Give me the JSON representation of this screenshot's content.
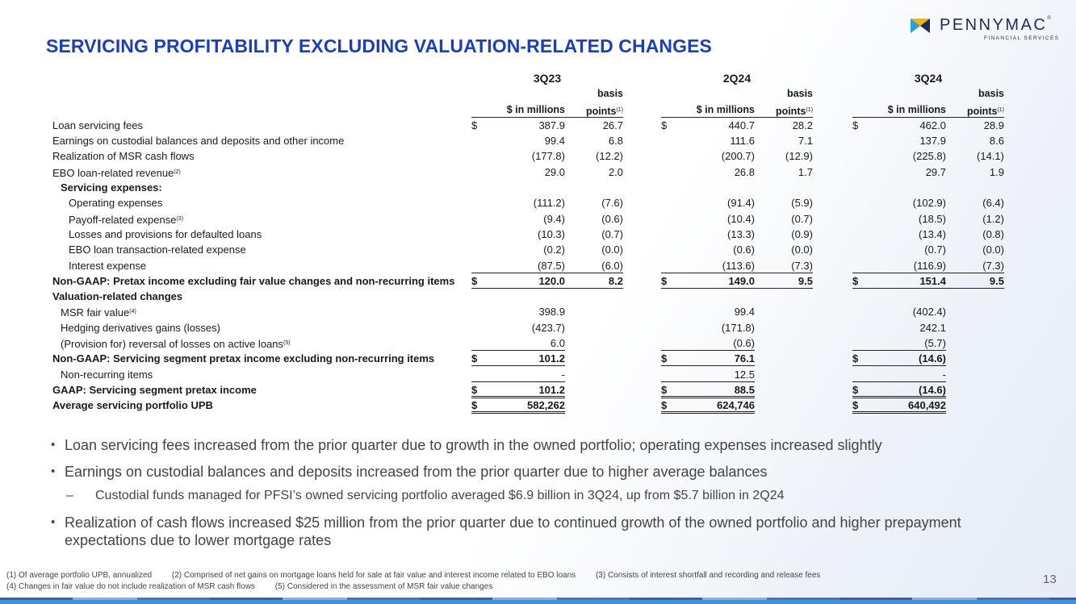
{
  "brand": {
    "name": "PENNYMAC",
    "reg": "®",
    "sub": "FINANCIAL SERVICES",
    "mark_colors": [
      "#f5b400",
      "#2e9fd8",
      "#1c2b5a"
    ]
  },
  "title": "SERVICING PROFITABILITY EXCLUDING VALUATION-RELATED CHANGES",
  "table": {
    "quarters": [
      "3Q23",
      "2Q24",
      "3Q24"
    ],
    "col_value_header": "$ in millions",
    "col_bps_header_top": "basis",
    "col_bps_header_bottom": "points",
    "col_bps_sup": "(1)",
    "dollar": "$",
    "rows": {
      "r01": {
        "label": "Loan servicing fees",
        "v1": "387.9",
        "b1": "26.7",
        "v2": "440.7",
        "b2": "28.2",
        "v3": "462.0",
        "b3": "28.9"
      },
      "r02": {
        "label": "Earnings on custodial balances and deposits and other income",
        "v1": "99.4",
        "b1": "6.8",
        "v2": "111.6",
        "b2": "7.1",
        "v3": "137.9",
        "b3": "8.6"
      },
      "r03": {
        "label": "Realization of MSR cash flows",
        "v1": "(177.8)",
        "b1": "(12.2)",
        "v2": "(200.7)",
        "b2": "(12.9)",
        "v3": "(225.8)",
        "b3": "(14.1)"
      },
      "r04": {
        "label": "EBO loan-related revenue",
        "sup": "(2)",
        "v1": "29.0",
        "b1": "2.0",
        "v2": "26.8",
        "b2": "1.7",
        "v3": "29.7",
        "b3": "1.9"
      },
      "r05": {
        "label": "Servicing expenses:"
      },
      "r06": {
        "label": "Operating expenses",
        "v1": "(111.2)",
        "b1": "(7.6)",
        "v2": "(91.4)",
        "b2": "(5.9)",
        "v3": "(102.9)",
        "b3": "(6.4)"
      },
      "r07": {
        "label": "Payoff-related expense",
        "sup": "(3)",
        "v1": "(9.4)",
        "b1": "(0.6)",
        "v2": "(10.4)",
        "b2": "(0.7)",
        "v3": "(18.5)",
        "b3": "(1.2)"
      },
      "r08": {
        "label": "Losses and provisions for defaulted loans",
        "v1": "(10.3)",
        "b1": "(0.7)",
        "v2": "(13.3)",
        "b2": "(0.9)",
        "v3": "(13.4)",
        "b3": "(0.8)"
      },
      "r09": {
        "label": "EBO loan transaction-related expense",
        "v1": "(0.2)",
        "b1": "(0.0)",
        "v2": "(0.6)",
        "b2": "(0.0)",
        "v3": "(0.7)",
        "b3": "(0.0)"
      },
      "r10": {
        "label": "Interest expense",
        "v1": "(87.5)",
        "b1": "(6.0)",
        "v2": "(113.6)",
        "b2": "(7.3)",
        "v3": "(116.9)",
        "b3": "(7.3)"
      },
      "r11": {
        "label": "Non-GAAP: Pretax income excluding fair value changes and non-recurring items",
        "v1": "120.0",
        "b1": "8.2",
        "v2": "149.0",
        "b2": "9.5",
        "v3": "151.4",
        "b3": "9.5"
      },
      "r12": {
        "label": "Valuation-related changes"
      },
      "r13": {
        "label": "MSR fair value",
        "sup": "(4)",
        "v1": "398.9",
        "v2": "99.4",
        "v3": "(402.4)"
      },
      "r14": {
        "label": "Hedging derivatives gains (losses)",
        "v1": "(423.7)",
        "v2": "(171.8)",
        "v3": "242.1"
      },
      "r15": {
        "label": "(Provision for) reversal of losses on active loans",
        "sup": "(5)",
        "v1": "6.0",
        "v2": "(0.6)",
        "v3": "(5.7)"
      },
      "r16": {
        "label": "Non-GAAP: Servicing segment pretax income excluding non-recurring items",
        "v1": "101.2",
        "v2": "76.1",
        "v3": "(14.6)"
      },
      "r17": {
        "label": "Non-recurring items",
        "v1": "-",
        "v2": "12.5",
        "v3": "-"
      },
      "r18": {
        "label": "GAAP: Servicing segment pretax income",
        "v1": "101.2",
        "v2": "88.5",
        "v3": "(14.6)"
      },
      "r19": {
        "label": "Average servicing portfolio UPB",
        "v1": "582,262",
        "v2": "624,746",
        "v3": "640,492"
      }
    }
  },
  "bullets": {
    "b1": "Loan servicing fees increased from the prior quarter due to growth in the owned portfolio; operating expenses increased slightly",
    "b2": "Earnings on custodial balances and deposits increased from the prior quarter due to higher average balances",
    "b2_sub": "Custodial funds managed for PFSI’s owned servicing portfolio averaged $6.9 billion in 3Q24, up from $5.7 billion in 2Q24",
    "b3": "Realization of cash flows increased $25 million from the prior quarter due to continued growth of the owned portfolio and higher prepayment expectations due to lower mortgage rates"
  },
  "footnotes": {
    "f1": "(1) Of average portfolio UPB, annualized",
    "f2": "(2) Comprised of net gains on mortgage loans held for sale at fair value and interest income related to EBO loans",
    "f3": "(3) Consists of interest shortfall and recording and release fees",
    "f4": "(4) Changes in fair value do not include realization of MSR cash flows",
    "f5": "(5) Considered in the assessment of MSR fair value changes"
  },
  "page_number": "13"
}
